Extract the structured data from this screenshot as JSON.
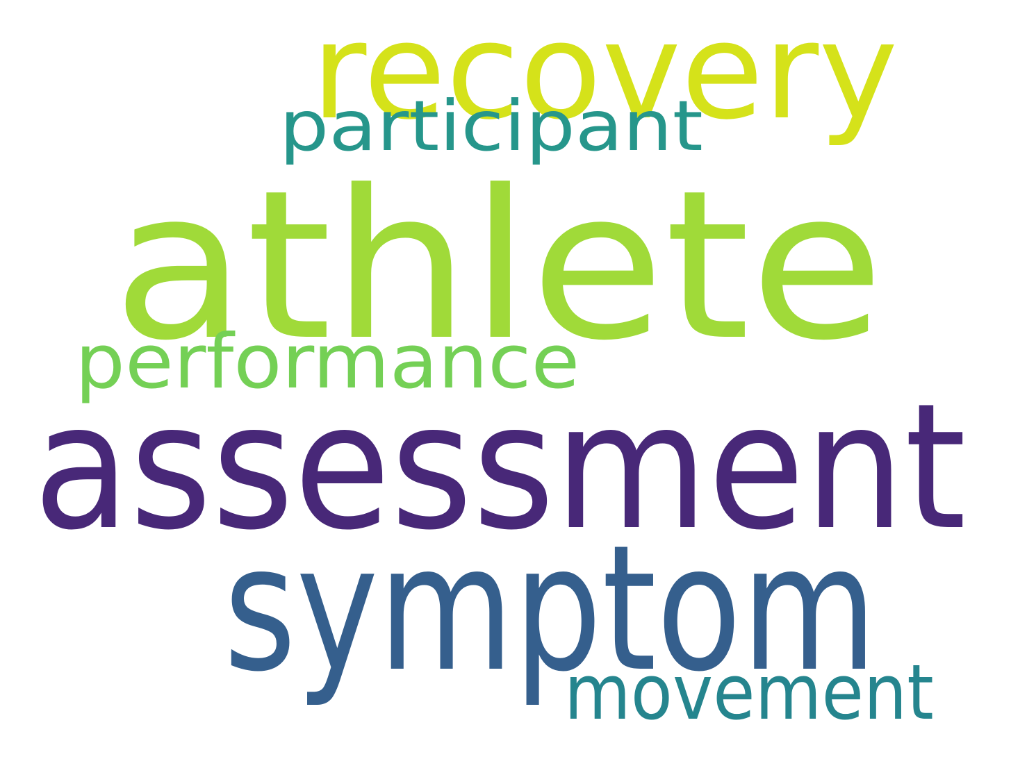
{
  "words": [
    {
      "id": "recovery",
      "text": "recovery",
      "color": "#d5e21a"
    },
    {
      "id": "participant",
      "text": "participant",
      "color": "#26968b"
    },
    {
      "id": "athlete",
      "text": "athlete",
      "color": "#a0da39"
    },
    {
      "id": "performance",
      "text": "performance",
      "color": "#74d055"
    },
    {
      "id": "assessment",
      "text": "assessment",
      "color": "#482878"
    },
    {
      "id": "symptom",
      "text": "symptom",
      "color": "#355f8d"
    },
    {
      "id": "movement",
      "text": "movement",
      "color": "#25858e"
    }
  ]
}
